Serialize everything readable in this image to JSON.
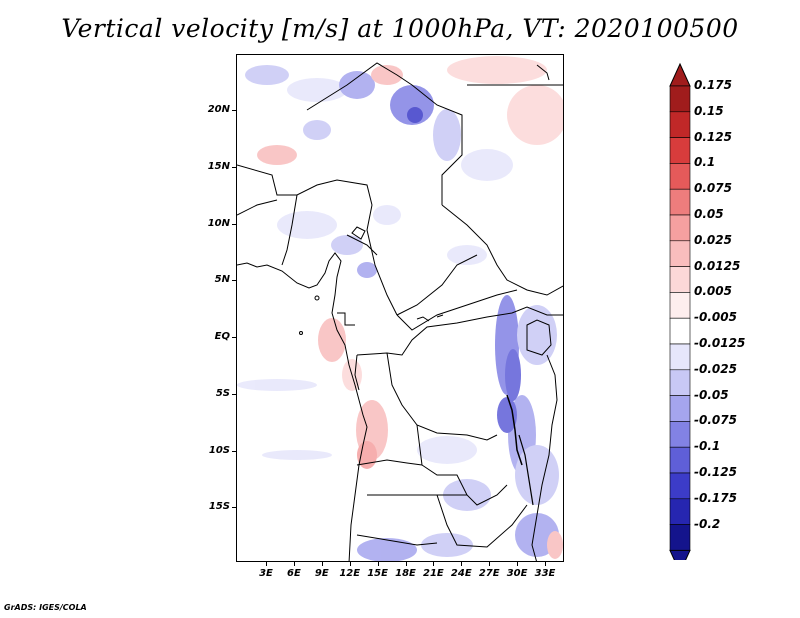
{
  "title": "Vertical velocity [m/s] at 1000hPa, VT: 2020100500",
  "footer": "GrADS: IGES/COLA",
  "map": {
    "lon_range": [
      0,
      35
    ],
    "lat_range": [
      -20,
      25
    ],
    "lat_ticks": [
      {
        "value": 20,
        "label": "20N"
      },
      {
        "value": 15,
        "label": "15N"
      },
      {
        "value": 10,
        "label": "10N"
      },
      {
        "value": 5,
        "label": "5N"
      },
      {
        "value": 0,
        "label": "EQ"
      },
      {
        "value": -5,
        "label": "5S"
      },
      {
        "value": -10,
        "label": "10S"
      },
      {
        "value": -15,
        "label": "15S"
      }
    ],
    "lon_ticks": [
      {
        "value": 3,
        "label": "3E"
      },
      {
        "value": 6,
        "label": "6E"
      },
      {
        "value": 9,
        "label": "9E"
      },
      {
        "value": 12,
        "label": "12E"
      },
      {
        "value": 15,
        "label": "15E"
      },
      {
        "value": 18,
        "label": "18E"
      },
      {
        "value": 21,
        "label": "21E"
      },
      {
        "value": 24,
        "label": "24E"
      },
      {
        "value": 27,
        "label": "27E"
      },
      {
        "value": 30,
        "label": "30E"
      },
      {
        "value": 33,
        "label": "33E"
      }
    ]
  },
  "colorbar": {
    "levels": [
      {
        "label": "0.175",
        "color": "#a01c1c"
      },
      {
        "label": "0.15",
        "color": "#c02828"
      },
      {
        "label": "0.125",
        "color": "#d83c3c"
      },
      {
        "label": "0.1",
        "color": "#e55a5a"
      },
      {
        "label": "0.075",
        "color": "#ee7d7d"
      },
      {
        "label": "0.05",
        "color": "#f5a0a0"
      },
      {
        "label": "0.025",
        "color": "#f9bdbd"
      },
      {
        "label": "0.0125",
        "color": "#fcd8d8"
      },
      {
        "label": "0.005",
        "color": "#feeeee"
      },
      {
        "label": "-0.005",
        "color": "#ffffff"
      },
      {
        "label": "-0.0125",
        "color": "#e6e6fb"
      },
      {
        "label": "-0.025",
        "color": "#c8c8f5"
      },
      {
        "label": "-0.05",
        "color": "#a5a5ee"
      },
      {
        "label": "-0.075",
        "color": "#8282e4"
      },
      {
        "label": "-0.1",
        "color": "#5f5fd8"
      },
      {
        "label": "-0.125",
        "color": "#3c3cc8"
      },
      {
        "label": "-0.175",
        "color": "#2626b0"
      },
      {
        "label": "-0.2",
        "color": "#14148c"
      }
    ],
    "top_color": "#a01c1c",
    "bottom_color": "#14148c"
  }
}
